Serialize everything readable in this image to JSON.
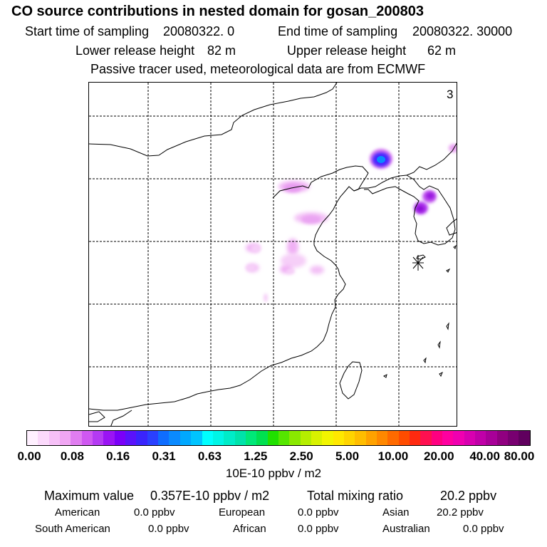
{
  "header": {
    "title": "CO  source contributions in nested domain for gosan_200803",
    "start_label": "Start time of sampling",
    "start_value": "20080322.     0",
    "end_label": "End time of sampling",
    "end_value": "20080322. 30000",
    "lower_label": "Lower release height",
    "lower_value": "82 m",
    "upper_label": "Upper release height",
    "upper_value": "62 m",
    "note": "Passive tracer used, meteorological data are from ECMWF"
  },
  "map": {
    "panel_number": "3",
    "receptor_marker": "asterisk-receptor-marker"
  },
  "colorbar": {
    "ticks": [
      "0.00",
      "0.08",
      "0.16",
      "0.31",
      "0.63",
      "1.25",
      "2.50",
      "5.00",
      "10.00",
      "20.00",
      "40.00",
      "80.00"
    ],
    "unit": "10E-10 ppbv / m2",
    "colors": [
      "#fff0ff",
      "#fbd9fb",
      "#f6c0f7",
      "#f0a6f3",
      "#e07df0",
      "#cf58f1",
      "#b43af3",
      "#9a14f4",
      "#7a00f8",
      "#5a12fb",
      "#3a24fd",
      "#2a40ff",
      "#0f6dff",
      "#0a8aff",
      "#00a8ff",
      "#00c4ff",
      "#00ffff",
      "#00f5e6",
      "#00ecc8",
      "#00e3aa",
      "#00e878",
      "#00e050",
      "#20e000",
      "#55e600",
      "#8ae800",
      "#b5ee00",
      "#d8f200",
      "#f2f500",
      "#ffe800",
      "#ffd400",
      "#ffbd00",
      "#ffa200",
      "#ff8800",
      "#ff6a00",
      "#ff4c00",
      "#ff2a10",
      "#ff1050",
      "#ff0080",
      "#ff00a0",
      "#f000b0",
      "#d800b0",
      "#c000a8",
      "#a80098",
      "#900080",
      "#780070",
      "#60005e"
    ]
  },
  "summary": {
    "max_label": "Maximum value",
    "max_value": "0.357E-10 ppbv / m2",
    "total_label": "Total mixing ratio",
    "total_value": "20.2 ppbv",
    "regions": [
      {
        "name": "American",
        "value": "0.0 ppbv"
      },
      {
        "name": "European",
        "value": "0.0 ppbv"
      },
      {
        "name": "Asian",
        "value": "20.2 ppbv"
      },
      {
        "name": "South American",
        "value": "0.0 ppbv"
      },
      {
        "name": "African",
        "value": "0.0 ppbv"
      },
      {
        "name": "Australian",
        "value": "0.0 ppbv"
      }
    ]
  }
}
